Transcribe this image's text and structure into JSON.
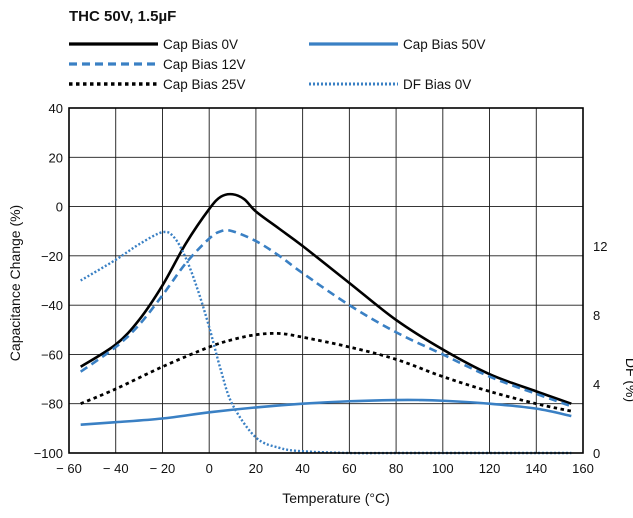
{
  "chart_data": {
    "type": "line",
    "title": "THC 50V, 1.5µF",
    "xlabel": "Temperature (°C)",
    "ylabel": "Capacitance Change (%)",
    "y2label": "DF (%)",
    "xlim": [
      -60,
      160
    ],
    "ylim": [
      -100,
      40
    ],
    "y2lim": [
      0,
      20
    ],
    "x_ticks": [
      -60,
      -40,
      -20,
      0,
      20,
      40,
      60,
      80,
      100,
      120,
      140,
      160
    ],
    "x_tick_labels": [
      "− 60",
      "− 40",
      "− 20",
      "0",
      "20",
      "40",
      "60",
      "80",
      "100",
      "120",
      "140",
      "160"
    ],
    "y_ticks": [
      -100,
      -80,
      -60,
      -40,
      -20,
      0,
      20,
      40
    ],
    "y_tick_labels": [
      "−100",
      "−80",
      "−60",
      "−40",
      "−20",
      "0",
      "20",
      "40"
    ],
    "y2_ticks": [
      0,
      4,
      8,
      12
    ],
    "y2_tick_labels": [
      "0",
      "4",
      "8",
      "12"
    ],
    "grid": true,
    "legend_position": "top",
    "series": [
      {
        "name": "Cap Bias 0V",
        "axis": "left",
        "color": "#000000",
        "style": "solid",
        "x": [
          -55,
          -40,
          -30,
          -20,
          -10,
          0,
          5,
          10,
          15,
          20,
          30,
          40,
          60,
          80,
          100,
          120,
          140,
          155
        ],
        "y": [
          -65,
          -56,
          -46,
          -32,
          -15,
          -1,
          4,
          5,
          3,
          -2,
          -9,
          -16,
          -31,
          -46,
          -58,
          -68,
          -75,
          -80
        ]
      },
      {
        "name": "Cap Bias 12V",
        "axis": "left",
        "color": "#3a80c4",
        "style": "dashed",
        "x": [
          -55,
          -40,
          -30,
          -20,
          -10,
          0,
          5,
          10,
          20,
          30,
          40,
          60,
          80,
          100,
          120,
          140,
          155
        ],
        "y": [
          -67,
          -57,
          -48,
          -36,
          -23,
          -13,
          -10,
          -10,
          -14,
          -20,
          -27,
          -40,
          -51,
          -60,
          -69,
          -76,
          -81
        ]
      },
      {
        "name": "Cap Bias 25V",
        "axis": "left",
        "color": "#000000",
        "style": "dotted-heavy",
        "x": [
          -55,
          -40,
          -20,
          0,
          10,
          20,
          30,
          40,
          60,
          80,
          100,
          120,
          140,
          155
        ],
        "y": [
          -80,
          -74,
          -65,
          -57,
          -54,
          -52,
          -51.5,
          -53,
          -57,
          -62,
          -69,
          -75,
          -80,
          -83
        ]
      },
      {
        "name": "Cap Bias 50V",
        "axis": "left",
        "color": "#3a80c4",
        "style": "solid",
        "x": [
          -55,
          -40,
          -20,
          0,
          20,
          40,
          60,
          80,
          90,
          100,
          120,
          140,
          155
        ],
        "y": [
          -88.5,
          -87.5,
          -86,
          -83.5,
          -81.5,
          -80,
          -79,
          -78.5,
          -78.5,
          -78.8,
          -80,
          -82,
          -85
        ]
      },
      {
        "name": "DF Bias 0V",
        "axis": "right",
        "color": "#3a80c4",
        "style": "fine-dotted",
        "x": [
          -55,
          -40,
          -30,
          -20,
          -15,
          -10,
          -5,
          0,
          5,
          10,
          20,
          30,
          40,
          60,
          80,
          100,
          120,
          140,
          155
        ],
        "y": [
          10,
          11.2,
          12.1,
          12.8,
          12.5,
          11.3,
          9.5,
          7.3,
          4.8,
          2.8,
          0.9,
          0.3,
          0.1,
          0,
          0,
          0,
          0,
          0,
          0
        ]
      }
    ]
  }
}
